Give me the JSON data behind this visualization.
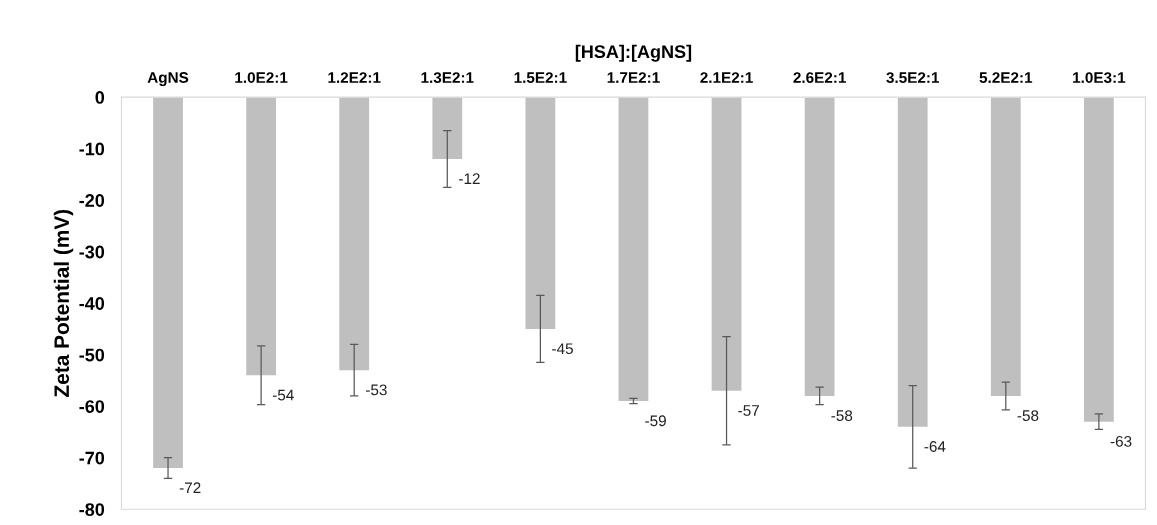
{
  "chart_data": {
    "type": "bar",
    "xlabel": "[HSA]:[AgNS]",
    "ylabel": "Zeta Potential (mV)",
    "categories": [
      "AgNS",
      "1.0E2:1",
      "1.2E2:1",
      "1.3E2:1",
      "1.5E2:1",
      "1.7E2:1",
      "2.1E2:1",
      "2.6E2:1",
      "3.5E2:1",
      "5.2E2:1",
      "1.0E3:1"
    ],
    "values": [
      -72,
      -54,
      -53,
      -12,
      -45,
      -59,
      -57,
      -58,
      -64,
      -58,
      -63
    ],
    "errors": [
      2,
      5.7,
      5,
      5.5,
      6.5,
      0.5,
      10.5,
      1.7,
      8,
      2.7,
      1.5
    ],
    "color": "#bfbfbf",
    "ylim": [
      -80,
      0
    ],
    "yticks": [
      0,
      -10,
      -20,
      -30,
      -40,
      -50,
      -60,
      -70,
      -80
    ],
    "grid": false,
    "legend": false,
    "data_labels": true
  }
}
